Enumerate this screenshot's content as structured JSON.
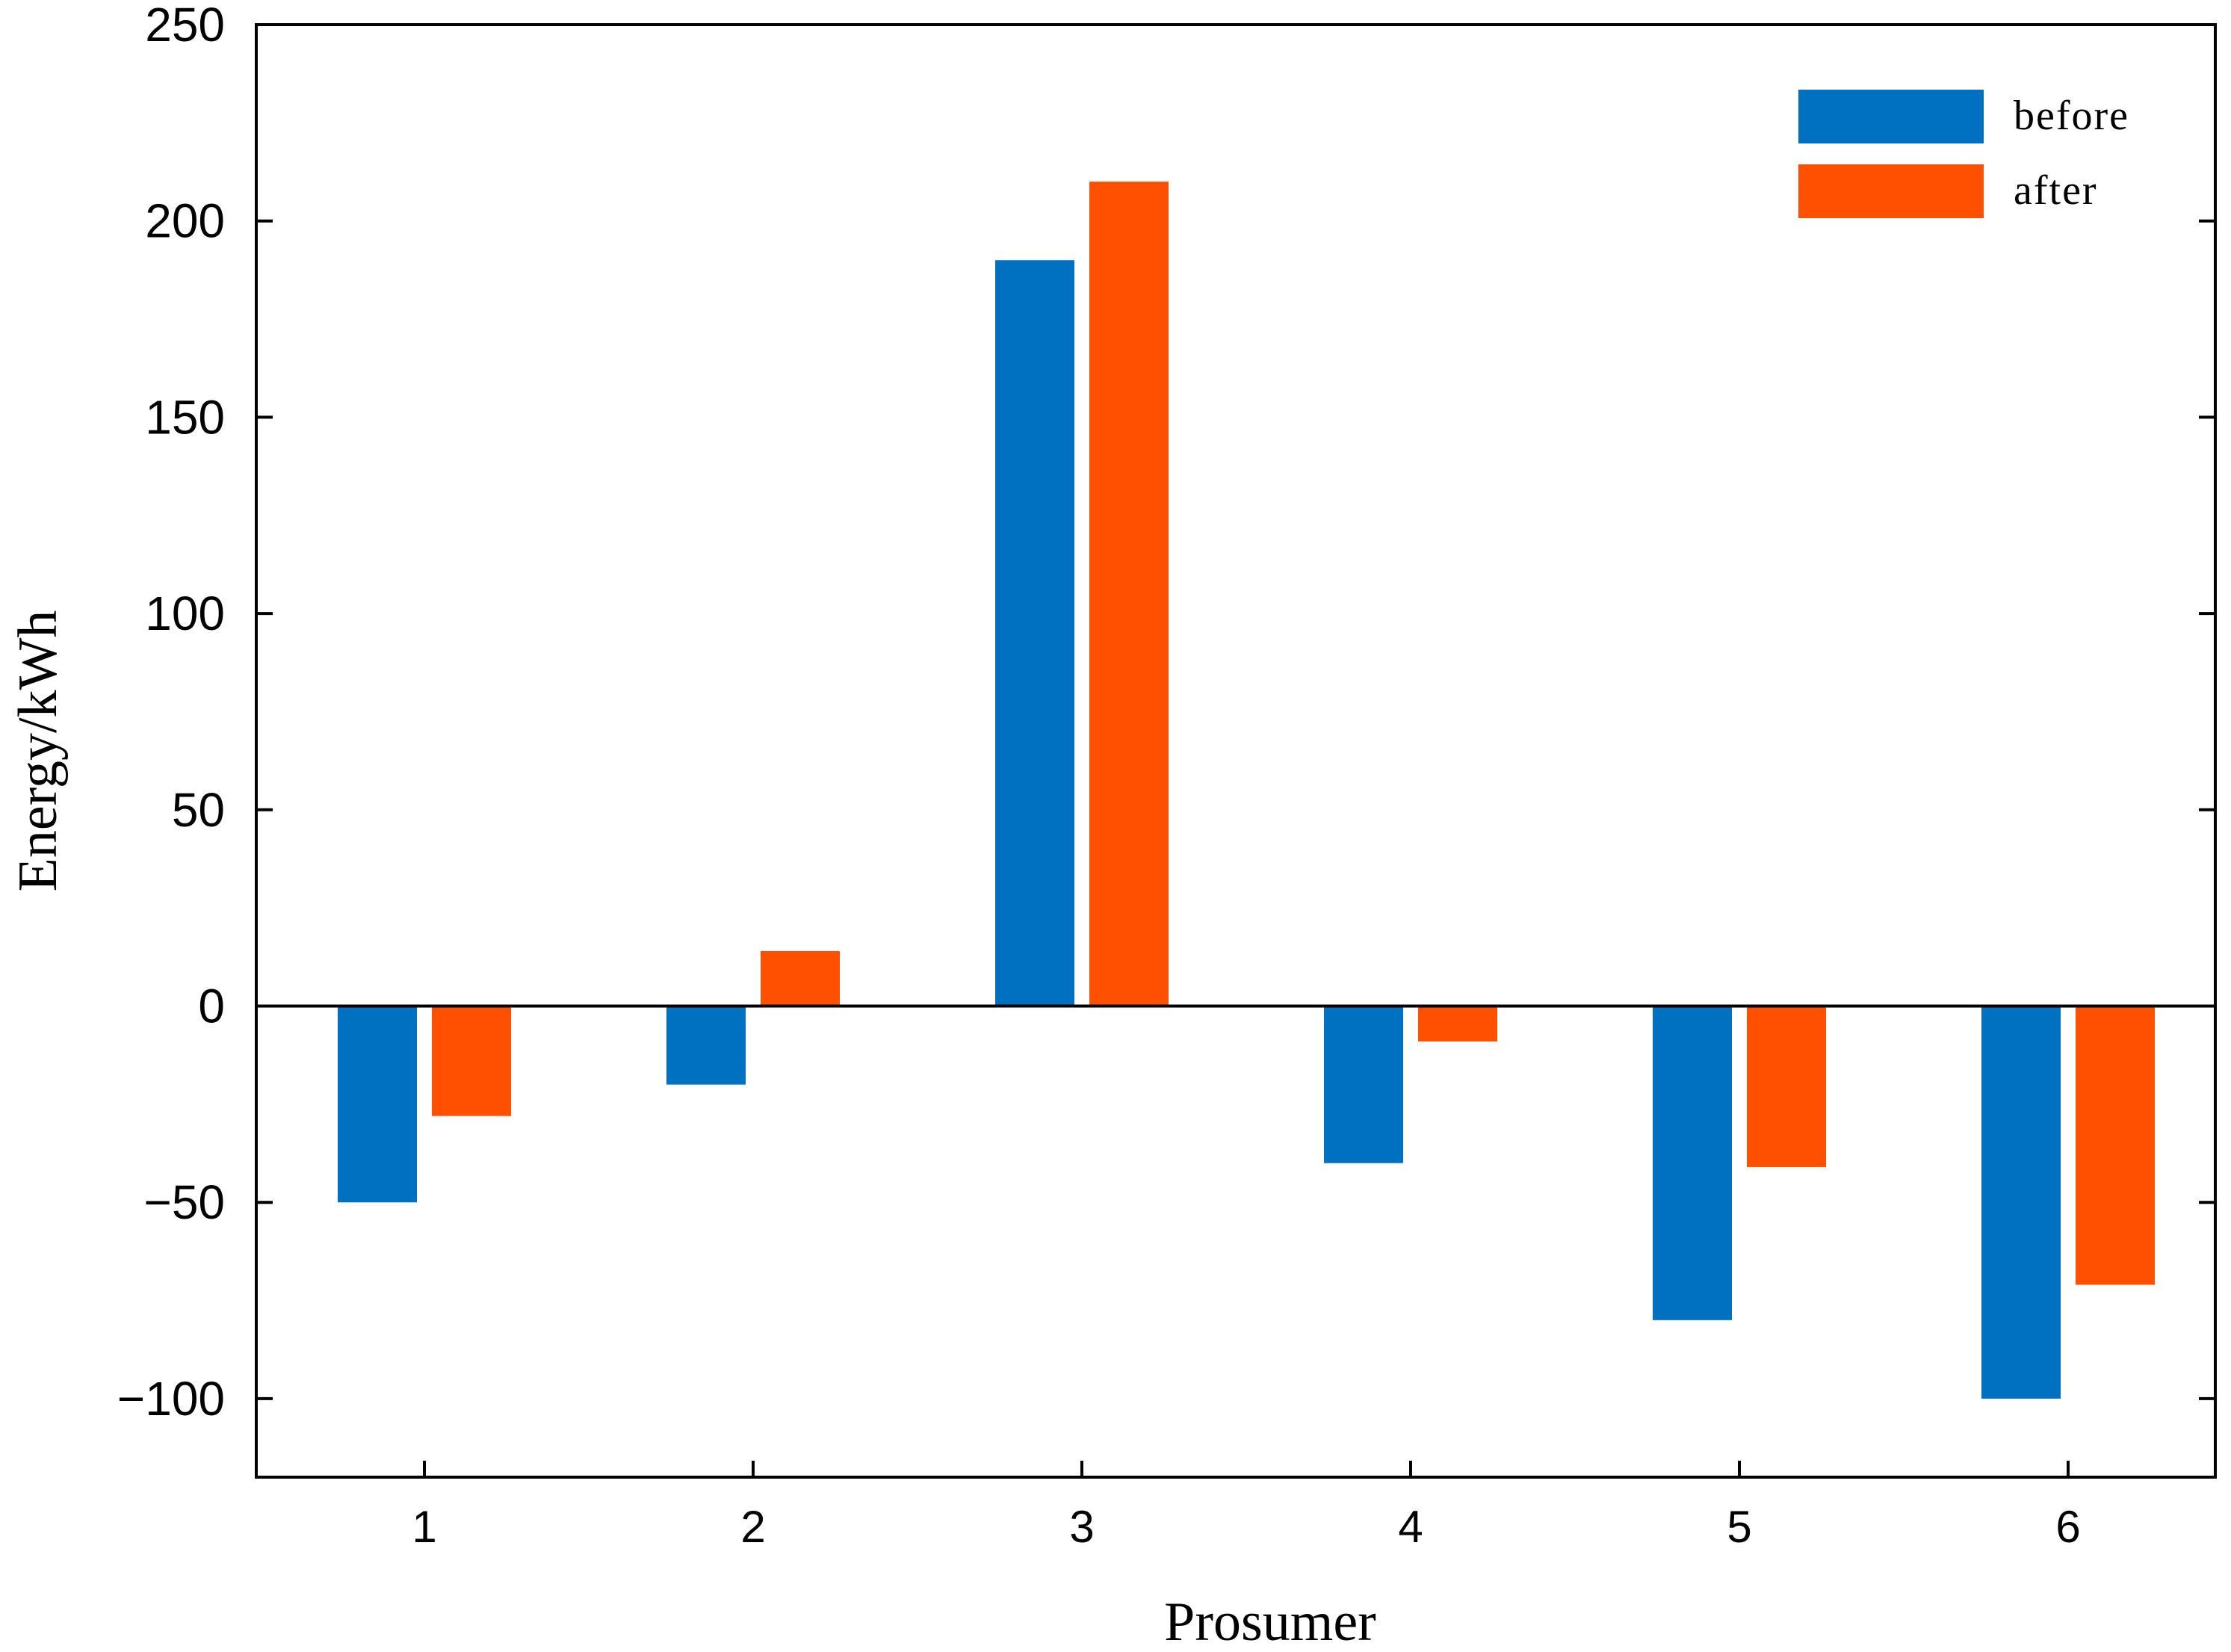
{
  "chart_data": {
    "type": "bar",
    "categories": [
      "1",
      "2",
      "3",
      "4",
      "5",
      "6"
    ],
    "series": [
      {
        "name": "before",
        "color": "#0070C0",
        "values": [
          -50,
          -20,
          190,
          -40,
          -80,
          -100
        ]
      },
      {
        "name": "after",
        "color": "#FF5000",
        "values": [
          -28,
          14,
          210,
          -9,
          -41,
          -71
        ]
      }
    ],
    "xlabel": "Prosumer",
    "ylabel": "Energy/kWh",
    "ylim": [
      -120,
      250
    ],
    "yticks": [
      250,
      200,
      150,
      100,
      50,
      0,
      -50,
      -100
    ],
    "ytick_labels": [
      "250",
      "200",
      "150",
      "100",
      "50",
      "0",
      "−50",
      "−100"
    ],
    "zero_line": true,
    "grid": false,
    "legend_position": "top-right"
  }
}
